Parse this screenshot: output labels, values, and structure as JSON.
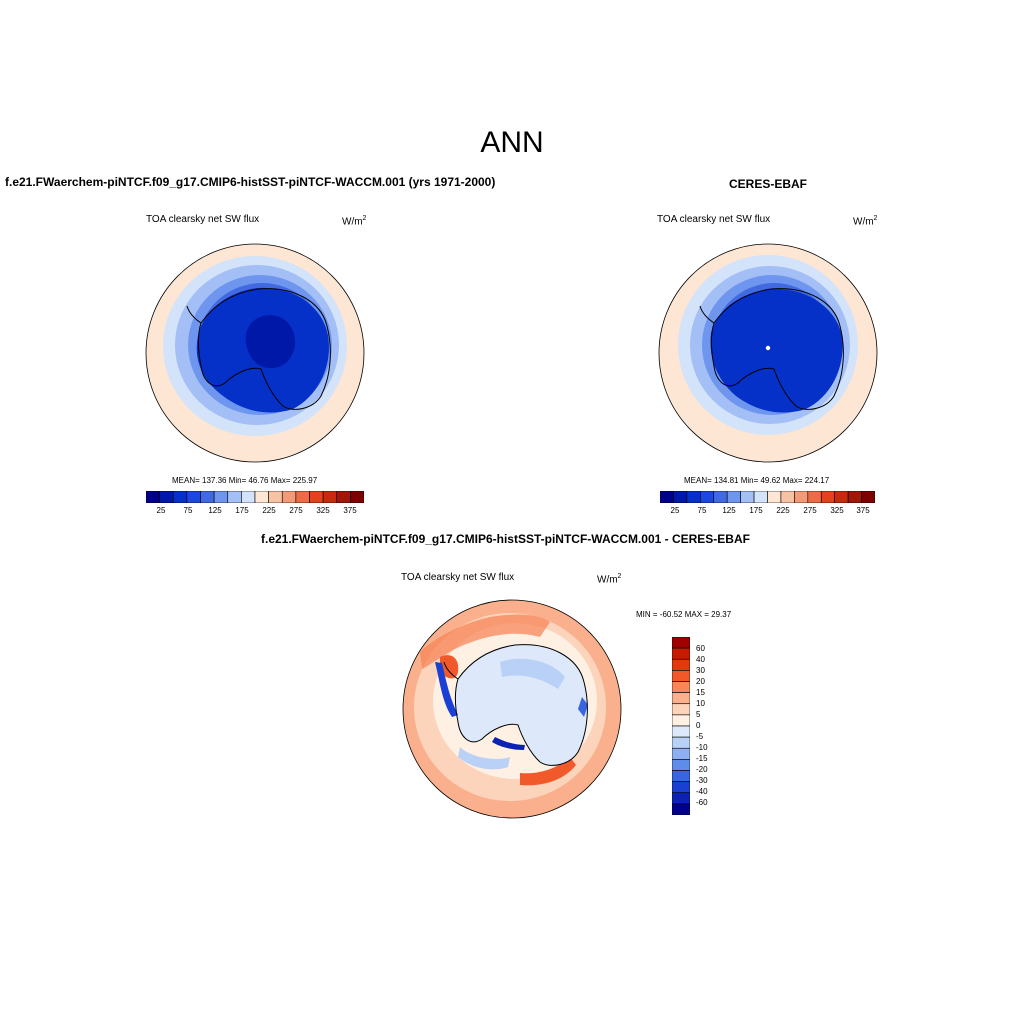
{
  "page": {
    "title": "ANN"
  },
  "colors": {
    "ocean_far": "#fde6d4",
    "continent_outline": "#000000"
  },
  "panels": [
    {
      "id": "model",
      "title": "f.e21.FWaerchem-piNTCF.f09_g17.CMIP6-histSST-piNTCF-WACCM.001 (yrs 1971-2000)",
      "variable": "TOA clearsky net SW flux",
      "units": "W/m",
      "units_exp": "2",
      "stats": "MEAN= 137.36  Min=  46.76  Max= 225.97",
      "colorbar": {
        "colors": [
          "#00008b",
          "#0018a8",
          "#0531c9",
          "#1d48e0",
          "#4169e1",
          "#6f96ee",
          "#a3bff5",
          "#d2e3fa",
          "#fde6d4",
          "#f8c3a5",
          "#f49a77",
          "#ee6b45",
          "#e3431b",
          "#c52b0d",
          "#a01707",
          "#7f0000"
        ],
        "ticks": [
          "25",
          "75",
          "125",
          "175",
          "225",
          "275",
          "325",
          "375"
        ]
      }
    },
    {
      "id": "obs",
      "title": "CERES-EBAF",
      "variable": "TOA clearsky net SW flux",
      "units": "W/m",
      "units_exp": "2",
      "stats": "MEAN= 134.81  Min=  49.62  Max= 224.17",
      "colorbar": {
        "colors": [
          "#00008b",
          "#0018a8",
          "#0531c9",
          "#1d48e0",
          "#4169e1",
          "#6f96ee",
          "#a3bff5",
          "#d2e3fa",
          "#fde6d4",
          "#f8c3a5",
          "#f49a77",
          "#ee6b45",
          "#e3431b",
          "#c52b0d",
          "#a01707",
          "#7f0000"
        ],
        "ticks": [
          "25",
          "75",
          "125",
          "175",
          "225",
          "275",
          "325",
          "375"
        ]
      }
    },
    {
      "id": "diff",
      "title": "f.e21.FWaerchem-piNTCF.f09_g17.CMIP6-histSST-piNTCF-WACCM.001 - CERES-EBAF",
      "variable": "TOA clearsky net SW flux",
      "units": "W/m",
      "units_exp": "2",
      "stats": "MIN = -60.52 MAX =  29.37",
      "colorbar": {
        "colors": [
          "#a00000",
          "#c71a00",
          "#e23a10",
          "#f2592a",
          "#f7865a",
          "#fab08c",
          "#fcd3bb",
          "#fff0e4",
          "#dde9fb",
          "#b9d0f7",
          "#8eb0f1",
          "#5f8be9",
          "#3a65e0",
          "#1a3fd4",
          "#0b22b3",
          "#00008b"
        ],
        "ticks": [
          "60",
          "40",
          "30",
          "20",
          "15",
          "10",
          "5",
          "0",
          "-5",
          "-10",
          "-15",
          "-20",
          "-30",
          "-40",
          "-60"
        ]
      }
    }
  ]
}
